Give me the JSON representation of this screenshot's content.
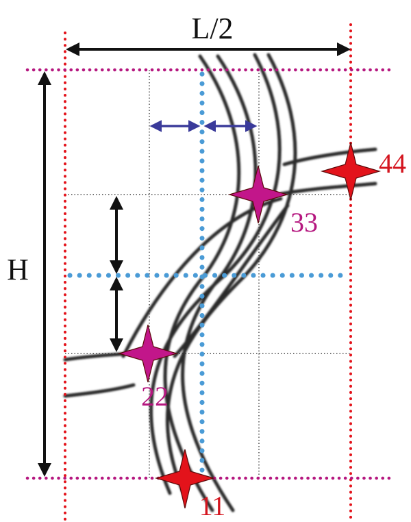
{
  "labels": {
    "half_length": "L/2",
    "height": "H",
    "point_11": "11",
    "point_22": "22",
    "point_33": "33",
    "point_44": "44"
  },
  "colors": {
    "red_marker": "#e3131b",
    "magenta_marker": "#c2168a",
    "red_boundary": "#e3131b",
    "magenta_boundary": "#b5177f",
    "blue_axis": "#4a9bd6",
    "navy_arrow": "#3a3a9a",
    "yarn": "#2a2a2a"
  }
}
